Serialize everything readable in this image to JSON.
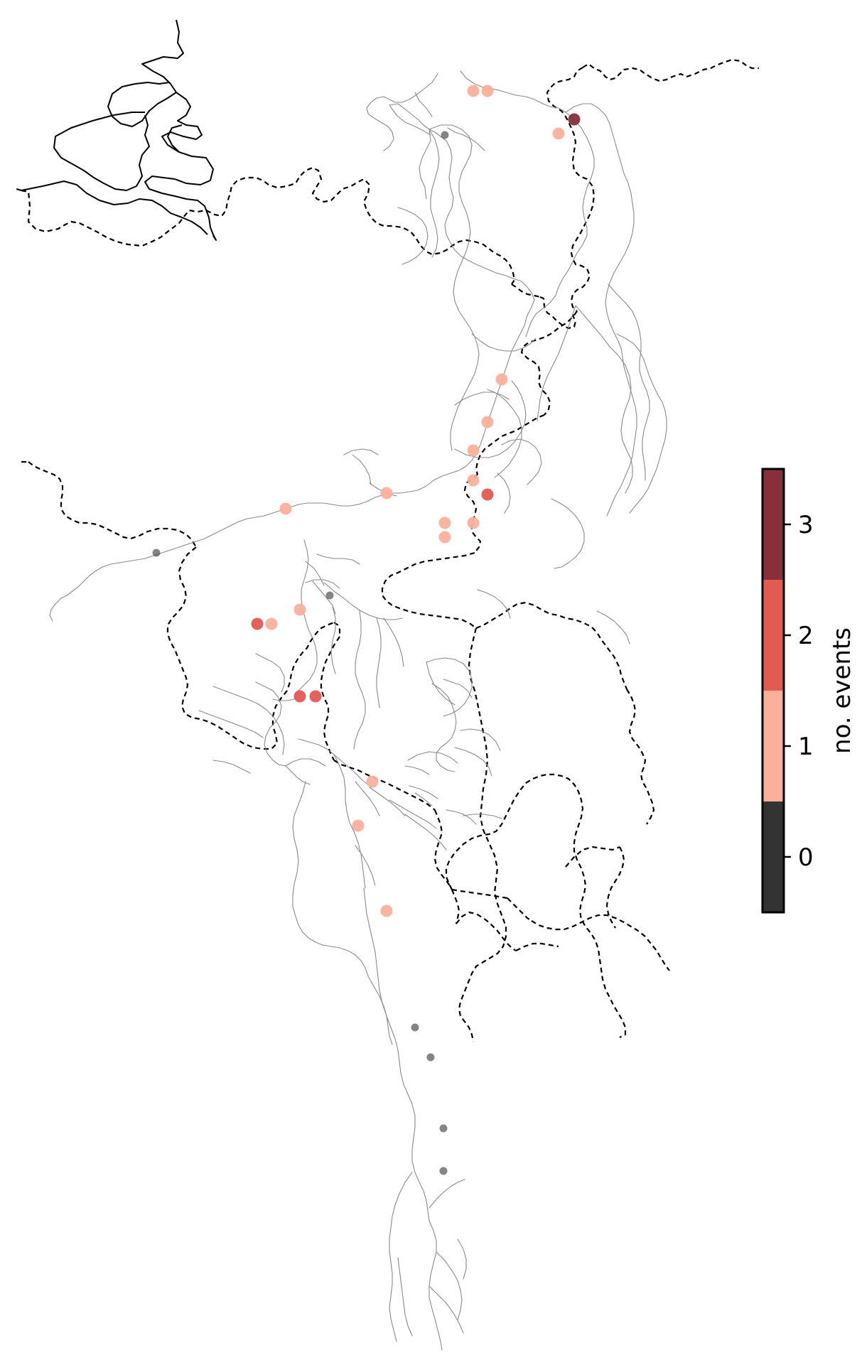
{
  "colorbar": {
    "label": "no. events",
    "levels": [
      {
        "value": 0,
        "label": "0",
        "color": "#333333"
      },
      {
        "value": 1,
        "label": "1",
        "color": "#fbb09a"
      },
      {
        "value": 2,
        "label": "2",
        "color": "#e35a52"
      },
      {
        "value": 3,
        "label": "3",
        "color": "#882f3c"
      }
    ]
  },
  "stations": [
    {
      "id": "s01",
      "events": 1
    },
    {
      "id": "s02",
      "events": 1
    },
    {
      "id": "s03",
      "events": 3
    },
    {
      "id": "s04",
      "events": 1
    },
    {
      "id": "s05",
      "events": 0
    },
    {
      "id": "s06",
      "events": 1
    },
    {
      "id": "s07",
      "events": 1
    },
    {
      "id": "s08",
      "events": 1
    },
    {
      "id": "s09",
      "events": 1
    },
    {
      "id": "s10",
      "events": 1
    },
    {
      "id": "s11",
      "events": 2
    },
    {
      "id": "s12",
      "events": 1
    },
    {
      "id": "s13",
      "events": 1
    },
    {
      "id": "s14",
      "events": 1
    },
    {
      "id": "s15",
      "events": 1
    },
    {
      "id": "s16",
      "events": 0
    },
    {
      "id": "s17",
      "events": 0
    },
    {
      "id": "s18",
      "events": 1
    },
    {
      "id": "s19",
      "events": 2
    },
    {
      "id": "s20",
      "events": 1
    },
    {
      "id": "s21",
      "events": 2
    },
    {
      "id": "s22",
      "events": 2
    },
    {
      "id": "s23",
      "events": 1
    },
    {
      "id": "s24",
      "events": 1
    },
    {
      "id": "s25",
      "events": 1
    },
    {
      "id": "s26",
      "events": 0
    },
    {
      "id": "s27",
      "events": 0
    },
    {
      "id": "s28",
      "events": 0
    },
    {
      "id": "s29",
      "events": 0
    }
  ]
}
